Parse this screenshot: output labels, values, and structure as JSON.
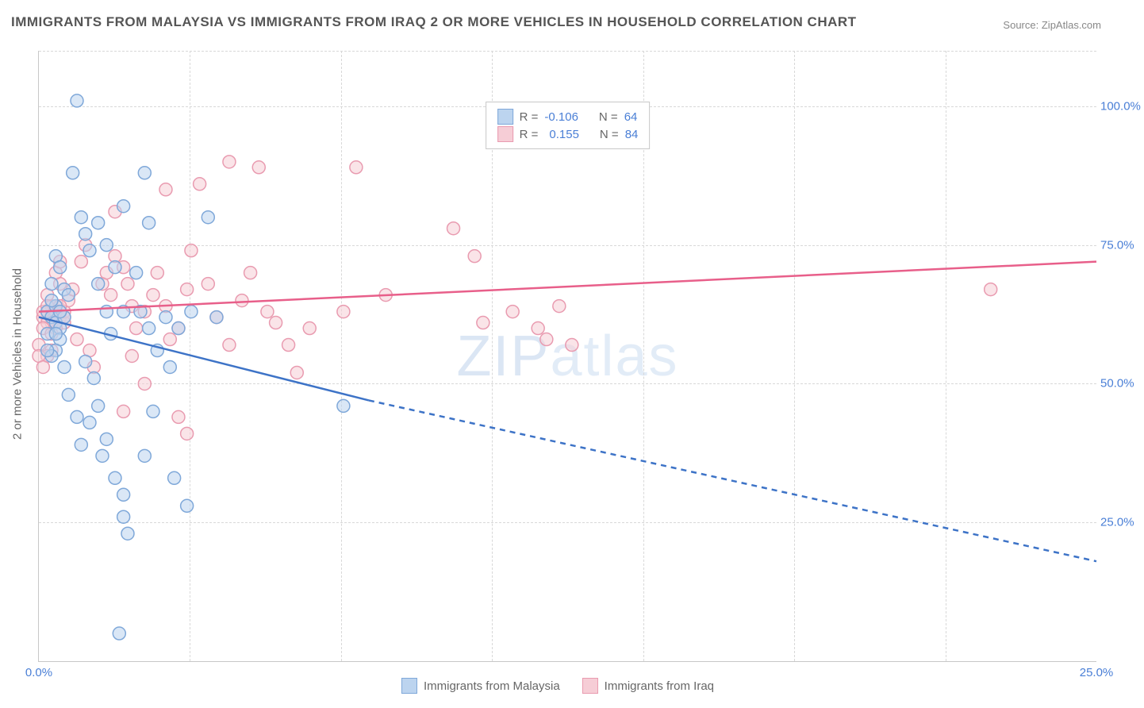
{
  "title": "IMMIGRANTS FROM MALAYSIA VS IMMIGRANTS FROM IRAQ 2 OR MORE VEHICLES IN HOUSEHOLD CORRELATION CHART",
  "source_label": "Source:",
  "source_value": "ZipAtlas.com",
  "ylabel": "2 or more Vehicles in Household",
  "watermark": "ZIPatlas",
  "chart": {
    "type": "scatter-correlation",
    "background_color": "#ffffff",
    "grid_color": "#d8d8d8",
    "axis_color": "#c8c8c8",
    "tick_label_color": "#4a7fd6",
    "tick_fontsize": 15,
    "x_domain": [
      0,
      25
    ],
    "y_domain": [
      0,
      110
    ],
    "y_ticks": [
      25,
      50,
      75,
      100
    ],
    "y_tick_labels": [
      "25.0%",
      "50.0%",
      "75.0%",
      "100.0%"
    ],
    "x_ticks": [
      0,
      25
    ],
    "x_tick_labels": [
      "0.0%",
      "25.0%"
    ],
    "x_minor_ticks": [
      3.57,
      7.14,
      10.71,
      14.29,
      17.86,
      21.43
    ],
    "marker_radius": 8,
    "marker_stroke_width": 1.5,
    "line_width": 2.5
  },
  "series": {
    "malaysia": {
      "label": "Immigrants from Malaysia",
      "color_fill": "#bcd4ef",
      "color_stroke": "#7fa8d9",
      "line_color": "#3d73c7",
      "r_value": "-0.106",
      "n_value": "64",
      "trend": {
        "x1": 0,
        "y1": 62,
        "x2_solid": 7.8,
        "y2_solid": 47,
        "x2": 25,
        "y2": 18,
        "dash_from": 7.8
      },
      "points": [
        [
          0.2,
          63
        ],
        [
          0.3,
          62
        ],
        [
          0.4,
          61
        ],
        [
          0.5,
          60
        ],
        [
          0.4,
          64
        ],
        [
          0.3,
          65
        ],
        [
          0.6,
          62
        ],
        [
          0.5,
          63
        ],
        [
          0.4,
          73
        ],
        [
          0.5,
          71
        ],
        [
          0.3,
          68
        ],
        [
          0.6,
          67
        ],
        [
          0.7,
          66
        ],
        [
          0.5,
          58
        ],
        [
          0.4,
          56
        ],
        [
          0.3,
          55
        ],
        [
          0.6,
          53
        ],
        [
          1.0,
          80
        ],
        [
          1.1,
          77
        ],
        [
          1.2,
          74
        ],
        [
          0.8,
          88
        ],
        [
          1.4,
          79
        ],
        [
          1.6,
          75
        ],
        [
          1.8,
          71
        ],
        [
          0.9,
          101
        ],
        [
          1.4,
          68
        ],
        [
          1.6,
          63
        ],
        [
          1.7,
          59
        ],
        [
          1.1,
          54
        ],
        [
          1.3,
          51
        ],
        [
          1.4,
          46
        ],
        [
          1.2,
          43
        ],
        [
          1.6,
          40
        ],
        [
          1.5,
          37
        ],
        [
          1.8,
          33
        ],
        [
          2.0,
          30
        ],
        [
          2.0,
          26
        ],
        [
          2.1,
          23
        ],
        [
          2.4,
          63
        ],
        [
          2.6,
          60
        ],
        [
          2.8,
          56
        ],
        [
          2.6,
          79
        ],
        [
          2.5,
          37
        ],
        [
          2.7,
          45
        ],
        [
          3.0,
          62
        ],
        [
          3.1,
          53
        ],
        [
          3.3,
          60
        ],
        [
          3.6,
          63
        ],
        [
          3.2,
          33
        ],
        [
          3.5,
          28
        ],
        [
          4.0,
          80
        ],
        [
          4.2,
          62
        ],
        [
          7.2,
          46
        ],
        [
          1.9,
          5
        ],
        [
          2.0,
          63
        ],
        [
          2.0,
          82
        ],
        [
          2.3,
          70
        ],
        [
          2.5,
          88
        ],
        [
          0.7,
          48
        ],
        [
          0.9,
          44
        ],
        [
          1.0,
          39
        ],
        [
          0.2,
          59
        ],
        [
          0.4,
          59
        ],
        [
          0.2,
          56
        ]
      ]
    },
    "iraq": {
      "label": "Immigrants from Iraq",
      "color_fill": "#f6cdd6",
      "color_stroke": "#e99bb0",
      "line_color": "#e85f8a",
      "r_value": "0.155",
      "n_value": "84",
      "trend": {
        "x1": 0,
        "y1": 63,
        "x2_solid": 25,
        "y2_solid": 72,
        "x2": 25,
        "y2": 72,
        "dash_from": 25
      },
      "points": [
        [
          0.2,
          62
        ],
        [
          0.3,
          63
        ],
        [
          0.4,
          64
        ],
        [
          0.5,
          62
        ],
        [
          0.6,
          61
        ],
        [
          0.4,
          60
        ],
        [
          0.3,
          61
        ],
        [
          0.6,
          63
        ],
        [
          0.7,
          65
        ],
        [
          0.8,
          67
        ],
        [
          0.5,
          68
        ],
        [
          0.4,
          70
        ],
        [
          1.0,
          72
        ],
        [
          1.1,
          75
        ],
        [
          0.9,
          58
        ],
        [
          1.2,
          56
        ],
        [
          1.3,
          53
        ],
        [
          1.5,
          68
        ],
        [
          1.6,
          70
        ],
        [
          1.7,
          66
        ],
        [
          1.8,
          73
        ],
        [
          2.0,
          71
        ],
        [
          2.1,
          68
        ],
        [
          2.2,
          64
        ],
        [
          2.3,
          60
        ],
        [
          2.5,
          63
        ],
        [
          2.7,
          66
        ],
        [
          2.8,
          70
        ],
        [
          3.0,
          64
        ],
        [
          3.1,
          58
        ],
        [
          3.3,
          60
        ],
        [
          3.5,
          67
        ],
        [
          3.6,
          74
        ],
        [
          3.8,
          86
        ],
        [
          4.0,
          68
        ],
        [
          4.2,
          62
        ],
        [
          4.5,
          57
        ],
        [
          4.8,
          65
        ],
        [
          5.0,
          70
        ],
        [
          5.2,
          89
        ],
        [
          5.4,
          63
        ],
        [
          5.6,
          61
        ],
        [
          5.9,
          57
        ],
        [
          6.1,
          52
        ],
        [
          6.4,
          60
        ],
        [
          7.2,
          63
        ],
        [
          7.5,
          89
        ],
        [
          8.2,
          66
        ],
        [
          9.8,
          78
        ],
        [
          10.3,
          73
        ],
        [
          10.5,
          61
        ],
        [
          11.2,
          63
        ],
        [
          11.8,
          60
        ],
        [
          12.0,
          58
        ],
        [
          12.3,
          64
        ],
        [
          12.6,
          57
        ],
        [
          22.5,
          67
        ],
        [
          3.0,
          85
        ],
        [
          3.3,
          44
        ],
        [
          3.5,
          41
        ],
        [
          4.5,
          90
        ],
        [
          1.8,
          81
        ],
        [
          2.2,
          55
        ],
        [
          2.5,
          50
        ],
        [
          2.0,
          45
        ],
        [
          0.5,
          72
        ],
        [
          0.3,
          56
        ],
        [
          0.2,
          55
        ],
        [
          0.1,
          62
        ],
        [
          0.2,
          63
        ],
        [
          0.3,
          64
        ],
        [
          0.4,
          63
        ],
        [
          0.2,
          66
        ],
        [
          0.5,
          64
        ],
        [
          0.6,
          62
        ],
        [
          0.2,
          61
        ],
        [
          0.1,
          60
        ],
        [
          0.3,
          59
        ],
        [
          0.1,
          63
        ],
        [
          0.2,
          64
        ],
        [
          0.4,
          61
        ],
        [
          0.0,
          57
        ],
        [
          0.0,
          55
        ],
        [
          0.1,
          53
        ]
      ]
    }
  },
  "stat_labels": {
    "r": "R =",
    "n": "N ="
  }
}
